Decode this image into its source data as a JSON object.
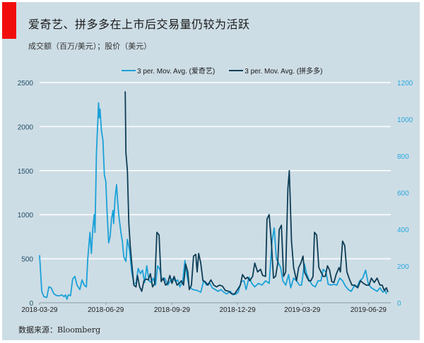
{
  "header": {
    "title": "爱奇艺、拼多多在上市后交易量仍较为活跃",
    "subtitle": "成交额（百万/美元）；股价（美元）"
  },
  "legend": [
    {
      "label": "3 per. Mov. Avg. (爱奇艺)",
      "color": "#1ba1d8"
    },
    {
      "label": "3 per. Mov. Avg. (拼多多)",
      "color": "#0d3d56"
    }
  ],
  "footer": {
    "source": "数据来源：Bloomberg"
  },
  "colors": {
    "background": "#cddde5",
    "accent_bar": "#f20d0d",
    "gridline": "#ffffff",
    "left_axis_text": "#1f4e66",
    "right_axis_text": "#29a8e0"
  },
  "chart_data": {
    "type": "line",
    "title": "爱奇艺、拼多多在上市后交易量仍较为活跃",
    "subtitle": "成交额（百万/美元）；股价（美元）",
    "xlabel": "",
    "ylabel": "",
    "x_ticks": [
      "2018-03-29",
      "2018-06-29",
      "2018-09-29",
      "2018-12-29",
      "2019-03-29",
      "2019-06-29"
    ],
    "y_left": {
      "ticks": [
        0,
        500,
        1000,
        1500,
        2000,
        2500
      ],
      "ylim": [
        0,
        2500
      ]
    },
    "y_right": {
      "ticks": [
        0,
        200,
        400,
        600,
        800,
        1000,
        1200
      ],
      "ylim": [
        0,
        1200
      ]
    },
    "grid": true,
    "legend_position": "top",
    "series": [
      {
        "name": "3 per. Mov. Avg. (爱奇艺)",
        "axis": "left",
        "color": "#1ba1d8",
        "points": [
          [
            "2018-03-29",
            540
          ],
          [
            "2018-04-01",
            130
          ],
          [
            "2018-04-04",
            70
          ],
          [
            "2018-04-08",
            60
          ],
          [
            "2018-04-11",
            180
          ],
          [
            "2018-04-14",
            170
          ],
          [
            "2018-04-18",
            100
          ],
          [
            "2018-04-22",
            80
          ],
          [
            "2018-04-26",
            80
          ],
          [
            "2018-04-29",
            90
          ],
          [
            "2018-05-02",
            70
          ],
          [
            "2018-05-04",
            90
          ],
          [
            "2018-05-06",
            40
          ],
          [
            "2018-05-08",
            90
          ],
          [
            "2018-05-11",
            80
          ],
          [
            "2018-05-14",
            270
          ],
          [
            "2018-05-17",
            300
          ],
          [
            "2018-05-20",
            200
          ],
          [
            "2018-05-24",
            150
          ],
          [
            "2018-05-27",
            260
          ],
          [
            "2018-05-30",
            200
          ],
          [
            "2018-06-02",
            180
          ],
          [
            "2018-06-04",
            500
          ],
          [
            "2018-06-07",
            800
          ],
          [
            "2018-06-09",
            560
          ],
          [
            "2018-06-11",
            850
          ],
          [
            "2018-06-13",
            1000
          ],
          [
            "2018-06-14",
            800
          ],
          [
            "2018-06-16",
            1700
          ],
          [
            "2018-06-19",
            2270
          ],
          [
            "2018-06-20",
            2100
          ],
          [
            "2018-06-21",
            2200
          ],
          [
            "2018-06-23",
            1950
          ],
          [
            "2018-06-25",
            1850
          ],
          [
            "2018-06-27",
            1450
          ],
          [
            "2018-06-29",
            1380
          ],
          [
            "2018-07-01",
            1000
          ],
          [
            "2018-07-03",
            680
          ],
          [
            "2018-07-05",
            750
          ],
          [
            "2018-07-07",
            950
          ],
          [
            "2018-07-09",
            1050
          ],
          [
            "2018-07-10",
            900
          ],
          [
            "2018-07-12",
            1200
          ],
          [
            "2018-07-14",
            1340
          ],
          [
            "2018-07-15",
            1200
          ],
          [
            "2018-07-17",
            1000
          ],
          [
            "2018-07-20",
            800
          ],
          [
            "2018-07-22",
            700
          ],
          [
            "2018-07-24",
            520
          ],
          [
            "2018-07-27",
            470
          ],
          [
            "2018-07-29",
            720
          ],
          [
            "2018-08-01",
            600
          ],
          [
            "2018-08-04",
            350
          ],
          [
            "2018-08-07",
            220
          ],
          [
            "2018-08-10",
            220
          ],
          [
            "2018-08-13",
            390
          ],
          [
            "2018-08-16",
            330
          ],
          [
            "2018-08-19",
            370
          ],
          [
            "2018-08-22",
            230
          ],
          [
            "2018-08-25",
            420
          ],
          [
            "2018-08-28",
            250
          ],
          [
            "2018-08-31",
            230
          ],
          [
            "2018-09-03",
            280
          ],
          [
            "2018-09-06",
            200
          ],
          [
            "2018-09-09",
            420
          ],
          [
            "2018-09-12",
            380
          ],
          [
            "2018-09-15",
            260
          ],
          [
            "2018-09-19",
            280
          ],
          [
            "2018-09-23",
            200
          ],
          [
            "2018-09-27",
            250
          ],
          [
            "2018-10-01",
            280
          ],
          [
            "2018-10-04",
            240
          ],
          [
            "2018-10-07",
            260
          ],
          [
            "2018-10-10",
            180
          ],
          [
            "2018-10-14",
            250
          ],
          [
            "2018-10-17",
            480
          ],
          [
            "2018-10-20",
            300
          ],
          [
            "2018-10-23",
            180
          ],
          [
            "2018-10-28",
            150
          ],
          [
            "2018-11-03",
            140
          ],
          [
            "2018-11-08",
            120
          ],
          [
            "2018-11-12",
            250
          ],
          [
            "2018-11-16",
            200
          ],
          [
            "2018-11-20",
            230
          ],
          [
            "2018-11-24",
            170
          ],
          [
            "2018-11-28",
            150
          ],
          [
            "2018-12-02",
            130
          ],
          [
            "2018-12-06",
            150
          ],
          [
            "2018-12-10",
            120
          ],
          [
            "2018-12-14",
            100
          ],
          [
            "2018-12-19",
            130
          ],
          [
            "2018-12-23",
            90
          ],
          [
            "2018-12-27",
            100
          ],
          [
            "2018-12-30",
            120
          ],
          [
            "2019-01-03",
            240
          ],
          [
            "2019-01-07",
            250
          ],
          [
            "2019-01-10",
            150
          ],
          [
            "2019-01-14",
            290
          ],
          [
            "2019-01-18",
            220
          ],
          [
            "2019-01-22",
            180
          ],
          [
            "2019-01-27",
            220
          ],
          [
            "2019-02-01",
            200
          ],
          [
            "2019-02-06",
            250
          ],
          [
            "2019-02-11",
            220
          ],
          [
            "2019-02-15",
            700
          ],
          [
            "2019-02-18",
            850
          ],
          [
            "2019-02-21",
            500
          ],
          [
            "2019-02-24",
            450
          ],
          [
            "2019-02-27",
            400
          ],
          [
            "2019-03-02",
            250
          ],
          [
            "2019-03-06",
            200
          ],
          [
            "2019-03-10",
            320
          ],
          [
            "2019-03-13",
            170
          ],
          [
            "2019-03-17",
            280
          ],
          [
            "2019-03-21",
            250
          ],
          [
            "2019-03-25",
            200
          ],
          [
            "2019-03-28",
            200
          ],
          [
            "2019-04-01",
            440
          ],
          [
            "2019-04-04",
            330
          ],
          [
            "2019-04-08",
            250
          ],
          [
            "2019-04-12",
            200
          ],
          [
            "2019-04-16",
            180
          ],
          [
            "2019-04-20",
            250
          ],
          [
            "2019-04-24",
            250
          ],
          [
            "2019-04-27",
            380
          ],
          [
            "2019-05-01",
            350
          ],
          [
            "2019-05-04",
            210
          ],
          [
            "2019-05-08",
            200
          ],
          [
            "2019-05-12",
            210
          ],
          [
            "2019-05-16",
            200
          ],
          [
            "2019-05-20",
            280
          ],
          [
            "2019-05-24",
            250
          ],
          [
            "2019-05-28",
            190
          ],
          [
            "2019-06-01",
            150
          ],
          [
            "2019-06-05",
            130
          ],
          [
            "2019-06-09",
            190
          ],
          [
            "2019-06-13",
            180
          ],
          [
            "2019-06-17",
            250
          ],
          [
            "2019-06-21",
            280
          ],
          [
            "2019-06-25",
            370
          ],
          [
            "2019-06-29",
            210
          ],
          [
            "2019-07-03",
            170
          ],
          [
            "2019-07-07",
            150
          ],
          [
            "2019-07-11",
            130
          ],
          [
            "2019-07-15",
            170
          ],
          [
            "2019-07-19",
            120
          ],
          [
            "2019-07-22",
            140
          ],
          [
            "2019-07-24",
            100
          ]
        ]
      },
      {
        "name": "3 per. Mov. Avg. (拼多多)",
        "axis": "left",
        "color": "#0d3d56",
        "points": [
          [
            "2018-07-26",
            2400
          ],
          [
            "2018-07-27",
            1700
          ],
          [
            "2018-07-29",
            1500
          ],
          [
            "2018-07-31",
            900
          ],
          [
            "2018-08-02",
            650
          ],
          [
            "2018-08-04",
            450
          ],
          [
            "2018-08-07",
            200
          ],
          [
            "2018-08-10",
            180
          ],
          [
            "2018-08-12",
            310
          ],
          [
            "2018-08-15",
            180
          ],
          [
            "2018-08-18",
            130
          ],
          [
            "2018-08-21",
            250
          ],
          [
            "2018-08-24",
            270
          ],
          [
            "2018-08-27",
            260
          ],
          [
            "2018-08-30",
            330
          ],
          [
            "2018-09-02",
            180
          ],
          [
            "2018-09-05",
            220
          ],
          [
            "2018-09-08",
            800
          ],
          [
            "2018-09-11",
            770
          ],
          [
            "2018-09-14",
            240
          ],
          [
            "2018-09-17",
            280
          ],
          [
            "2018-09-20",
            200
          ],
          [
            "2018-09-23",
            220
          ],
          [
            "2018-09-26",
            310
          ],
          [
            "2018-09-29",
            220
          ],
          [
            "2018-10-02",
            300
          ],
          [
            "2018-10-06",
            200
          ],
          [
            "2018-10-09",
            220
          ],
          [
            "2018-10-12",
            250
          ],
          [
            "2018-10-15",
            200
          ],
          [
            "2018-10-18",
            440
          ],
          [
            "2018-10-21",
            350
          ],
          [
            "2018-10-23",
            150
          ],
          [
            "2018-10-26",
            200
          ],
          [
            "2018-10-29",
            530
          ],
          [
            "2018-11-01",
            550
          ],
          [
            "2018-11-03",
            350
          ],
          [
            "2018-11-05",
            560
          ],
          [
            "2018-11-08",
            450
          ],
          [
            "2018-11-11",
            250
          ],
          [
            "2018-11-14",
            240
          ],
          [
            "2018-11-18",
            200
          ],
          [
            "2018-11-22",
            260
          ],
          [
            "2018-11-26",
            200
          ],
          [
            "2018-11-30",
            180
          ],
          [
            "2018-12-04",
            200
          ],
          [
            "2018-12-08",
            190
          ],
          [
            "2018-12-12",
            140
          ],
          [
            "2018-12-17",
            130
          ],
          [
            "2018-12-21",
            100
          ],
          [
            "2018-12-25",
            100
          ],
          [
            "2018-12-29",
            150
          ],
          [
            "2019-01-02",
            200
          ],
          [
            "2019-01-05",
            320
          ],
          [
            "2019-01-09",
            270
          ],
          [
            "2019-01-12",
            290
          ],
          [
            "2019-01-15",
            250
          ],
          [
            "2019-01-19",
            300
          ],
          [
            "2019-01-22",
            450
          ],
          [
            "2019-01-26",
            350
          ],
          [
            "2019-01-30",
            380
          ],
          [
            "2019-02-02",
            310
          ],
          [
            "2019-02-06",
            300
          ],
          [
            "2019-02-08",
            950
          ],
          [
            "2019-02-11",
            1000
          ],
          [
            "2019-02-14",
            700
          ],
          [
            "2019-02-17",
            280
          ],
          [
            "2019-02-20",
            300
          ],
          [
            "2019-02-23",
            450
          ],
          [
            "2019-02-25",
            830
          ],
          [
            "2019-02-28",
            880
          ],
          [
            "2019-03-03",
            300
          ],
          [
            "2019-03-06",
            350
          ],
          [
            "2019-03-09",
            1300
          ],
          [
            "2019-03-11",
            1500
          ],
          [
            "2019-03-14",
            700
          ],
          [
            "2019-03-17",
            400
          ],
          [
            "2019-03-21",
            250
          ],
          [
            "2019-03-24",
            400
          ],
          [
            "2019-03-27",
            450
          ],
          [
            "2019-03-30",
            530
          ],
          [
            "2019-04-01",
            350
          ],
          [
            "2019-04-04",
            300
          ],
          [
            "2019-04-07",
            250
          ],
          [
            "2019-04-10",
            250
          ],
          [
            "2019-04-13",
            300
          ],
          [
            "2019-04-15",
            800
          ],
          [
            "2019-04-18",
            770
          ],
          [
            "2019-04-21",
            400
          ],
          [
            "2019-04-24",
            350
          ],
          [
            "2019-04-27",
            300
          ],
          [
            "2019-04-30",
            300
          ],
          [
            "2019-05-03",
            420
          ],
          [
            "2019-05-06",
            370
          ],
          [
            "2019-05-09",
            240
          ],
          [
            "2019-05-12",
            230
          ],
          [
            "2019-05-15",
            320
          ],
          [
            "2019-05-19",
            400
          ],
          [
            "2019-05-21",
            350
          ],
          [
            "2019-05-24",
            700
          ],
          [
            "2019-05-27",
            650
          ],
          [
            "2019-05-30",
            350
          ],
          [
            "2019-06-02",
            280
          ],
          [
            "2019-06-06",
            200
          ],
          [
            "2019-06-10",
            200
          ],
          [
            "2019-06-14",
            170
          ],
          [
            "2019-06-18",
            250
          ],
          [
            "2019-06-22",
            220
          ],
          [
            "2019-06-26",
            200
          ],
          [
            "2019-06-30",
            200
          ],
          [
            "2019-07-03",
            280
          ],
          [
            "2019-07-07",
            230
          ],
          [
            "2019-07-11",
            280
          ],
          [
            "2019-07-15",
            200
          ],
          [
            "2019-07-18",
            200
          ],
          [
            "2019-07-21",
            140
          ],
          [
            "2019-07-24",
            170
          ],
          [
            "2019-07-26",
            120
          ]
        ]
      }
    ]
  }
}
